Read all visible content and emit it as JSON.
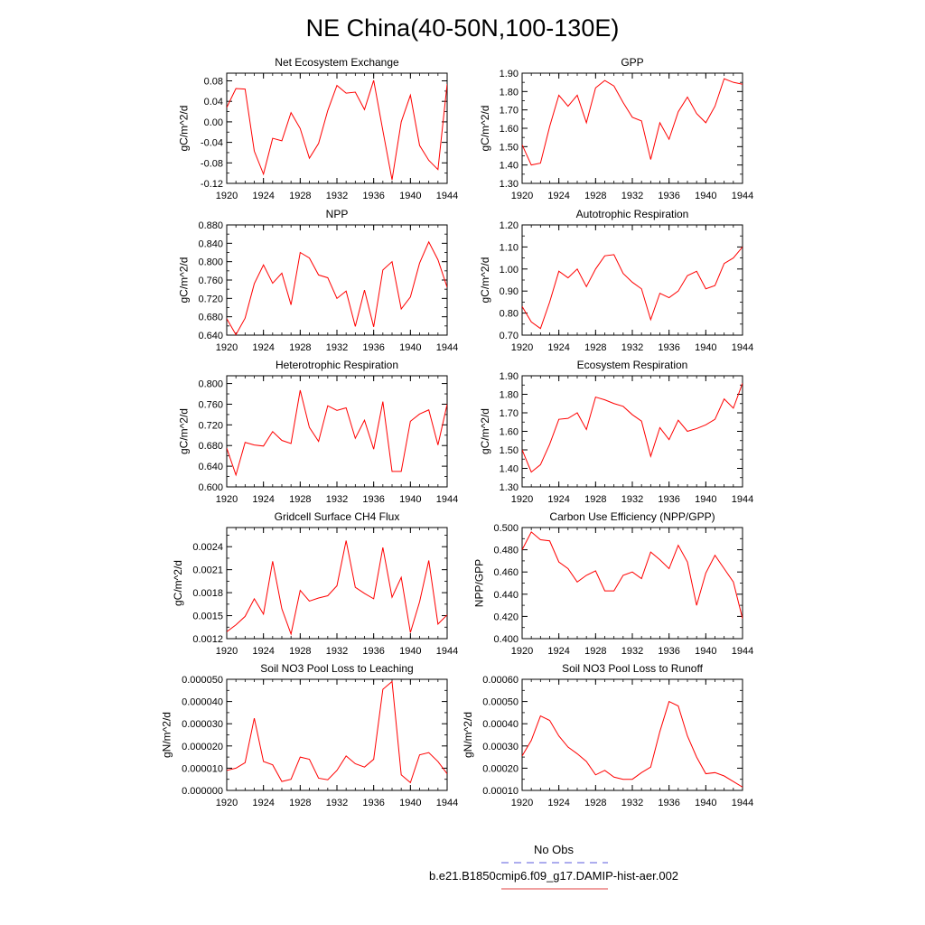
{
  "figure_title": "NE China(40-50N,100-130E)",
  "legend": [
    {
      "label": "No Obs",
      "color": "#5b5bdc",
      "dash": true
    },
    {
      "label": "b.e21.B1850cmip6.f09_g17.DAMIP-hist-aer.002",
      "color": "#e04040",
      "dash": false
    }
  ],
  "colors": {
    "series": "#ff0000",
    "frame": "#000000"
  },
  "chart_data": [
    {
      "type": "line",
      "title": "Net Ecosystem Exchange",
      "ylabel": "gC/m^2/d",
      "x": [
        1920,
        1921,
        1922,
        1923,
        1924,
        1925,
        1926,
        1927,
        1928,
        1929,
        1930,
        1931,
        1932,
        1933,
        1934,
        1935,
        1936,
        1937,
        1938,
        1939,
        1940,
        1941,
        1942,
        1943,
        1944
      ],
      "xticks": [
        "1920",
        "1924",
        "1928",
        "1932",
        "1936",
        "1940",
        "1944"
      ],
      "ylim": [
        -0.12,
        0.095
      ],
      "yticks": [
        "-0.12",
        "-0.08",
        "-0.04",
        "0.00",
        "0.04",
        "0.08"
      ],
      "values": [
        0.028,
        0.065,
        0.064,
        -0.057,
        -0.102,
        -0.032,
        -0.037,
        0.018,
        -0.013,
        -0.071,
        -0.042,
        0.022,
        0.071,
        0.056,
        0.058,
        0.024,
        0.081,
        -0.017,
        -0.113,
        0.0,
        0.052,
        -0.046,
        -0.075,
        -0.093,
        0.074
      ]
    },
    {
      "type": "line",
      "title": "GPP",
      "ylabel": "gC/m^2/d",
      "x": [
        1920,
        1921,
        1922,
        1923,
        1924,
        1925,
        1926,
        1927,
        1928,
        1929,
        1930,
        1931,
        1932,
        1933,
        1934,
        1935,
        1936,
        1937,
        1938,
        1939,
        1940,
        1941,
        1942,
        1943,
        1944
      ],
      "xticks": [
        "1920",
        "1924",
        "1928",
        "1932",
        "1936",
        "1940",
        "1944"
      ],
      "ylim": [
        1.3,
        1.9
      ],
      "yticks": [
        "1.30",
        "1.40",
        "1.50",
        "1.60",
        "1.70",
        "1.80",
        "1.90"
      ],
      "values": [
        1.51,
        1.4,
        1.41,
        1.61,
        1.78,
        1.72,
        1.78,
        1.63,
        1.82,
        1.86,
        1.83,
        1.74,
        1.66,
        1.64,
        1.43,
        1.63,
        1.54,
        1.69,
        1.77,
        1.68,
        1.63,
        1.72,
        1.87,
        1.85,
        1.84
      ]
    },
    {
      "type": "line",
      "title": "NPP",
      "ylabel": "gC/m^2/d",
      "x": [
        1920,
        1921,
        1922,
        1923,
        1924,
        1925,
        1926,
        1927,
        1928,
        1929,
        1930,
        1931,
        1932,
        1933,
        1934,
        1935,
        1936,
        1937,
        1938,
        1939,
        1940,
        1941,
        1942,
        1943,
        1944
      ],
      "xticks": [
        "1920",
        "1924",
        "1928",
        "1932",
        "1936",
        "1940",
        "1944"
      ],
      "ylim": [
        0.64,
        0.88
      ],
      "yticks": [
        "0.640",
        "0.680",
        "0.720",
        "0.760",
        "0.800",
        "0.840",
        "0.880"
      ],
      "values": [
        0.676,
        0.641,
        0.677,
        0.752,
        0.793,
        0.753,
        0.775,
        0.706,
        0.82,
        0.808,
        0.771,
        0.765,
        0.72,
        0.736,
        0.659,
        0.738,
        0.658,
        0.782,
        0.8,
        0.697,
        0.723,
        0.797,
        0.843,
        0.804,
        0.744
      ]
    },
    {
      "type": "line",
      "title": "Autotrophic Respiration",
      "ylabel": "gC/m^2/d",
      "x": [
        1920,
        1921,
        1922,
        1923,
        1924,
        1925,
        1926,
        1927,
        1928,
        1929,
        1930,
        1931,
        1932,
        1933,
        1934,
        1935,
        1936,
        1937,
        1938,
        1939,
        1940,
        1941,
        1942,
        1943,
        1944
      ],
      "xticks": [
        "1920",
        "1924",
        "1928",
        "1932",
        "1936",
        "1940",
        "1944"
      ],
      "ylim": [
        0.7,
        1.2
      ],
      "yticks": [
        "0.70",
        "0.80",
        "0.90",
        "1.00",
        "1.10",
        "1.20"
      ],
      "values": [
        0.83,
        0.76,
        0.73,
        0.85,
        0.99,
        0.96,
        1.0,
        0.92,
        1.0,
        1.06,
        1.065,
        0.98,
        0.94,
        0.91,
        0.77,
        0.89,
        0.87,
        0.9,
        0.97,
        0.99,
        0.91,
        0.925,
        1.025,
        1.05,
        1.1
      ]
    },
    {
      "type": "line",
      "title": "Heterotrophic Respiration",
      "ylabel": "gC/m^2/d",
      "x": [
        1920,
        1921,
        1922,
        1923,
        1924,
        1925,
        1926,
        1927,
        1928,
        1929,
        1930,
        1931,
        1932,
        1933,
        1934,
        1935,
        1936,
        1937,
        1938,
        1939,
        1940,
        1941,
        1942,
        1943,
        1944
      ],
      "xticks": [
        "1920",
        "1924",
        "1928",
        "1932",
        "1936",
        "1940",
        "1944"
      ],
      "ylim": [
        0.6,
        0.815
      ],
      "yticks": [
        "0.600",
        "0.640",
        "0.680",
        "0.720",
        "0.760",
        "0.800"
      ],
      "values": [
        0.675,
        0.623,
        0.686,
        0.681,
        0.679,
        0.707,
        0.69,
        0.684,
        0.787,
        0.715,
        0.688,
        0.757,
        0.748,
        0.753,
        0.694,
        0.729,
        0.673,
        0.765,
        0.63,
        0.63,
        0.727,
        0.741,
        0.749,
        0.681,
        0.76
      ]
    },
    {
      "type": "line",
      "title": "Ecosystem Respiration",
      "ylabel": "gC/m^2/d",
      "x": [
        1920,
        1921,
        1922,
        1923,
        1924,
        1925,
        1926,
        1927,
        1928,
        1929,
        1930,
        1931,
        1932,
        1933,
        1934,
        1935,
        1936,
        1937,
        1938,
        1939,
        1940,
        1941,
        1942,
        1943,
        1944
      ],
      "xticks": [
        "1920",
        "1924",
        "1928",
        "1932",
        "1936",
        "1940",
        "1944"
      ],
      "ylim": [
        1.3,
        1.9
      ],
      "yticks": [
        "1.30",
        "1.40",
        "1.50",
        "1.60",
        "1.70",
        "1.80",
        "1.90"
      ],
      "values": [
        1.5,
        1.38,
        1.42,
        1.53,
        1.665,
        1.67,
        1.7,
        1.61,
        1.785,
        1.77,
        1.75,
        1.735,
        1.69,
        1.655,
        1.465,
        1.62,
        1.555,
        1.66,
        1.6,
        1.615,
        1.635,
        1.665,
        1.775,
        1.725,
        1.86
      ]
    },
    {
      "type": "line",
      "title": "Gridcell Surface CH4 Flux",
      "ylabel": "gC/m^2/d",
      "x": [
        1920,
        1921,
        1922,
        1923,
        1924,
        1925,
        1926,
        1927,
        1928,
        1929,
        1930,
        1931,
        1932,
        1933,
        1934,
        1935,
        1936,
        1937,
        1938,
        1939,
        1940,
        1941,
        1942,
        1943,
        1944
      ],
      "xticks": [
        "1920",
        "1924",
        "1928",
        "1932",
        "1936",
        "1940",
        "1944"
      ],
      "ylim": [
        0.0012,
        0.00265
      ],
      "yticks": [
        "0.0012",
        "0.0015",
        "0.0018",
        "0.0021",
        "0.0024"
      ],
      "values": [
        0.00129,
        0.00138,
        0.00149,
        0.00172,
        0.00152,
        0.00221,
        0.00159,
        0.00126,
        0.00183,
        0.00169,
        0.00173,
        0.00176,
        0.00189,
        0.00248,
        0.00187,
        0.00179,
        0.00172,
        0.00239,
        0.00174,
        0.002,
        0.00128,
        0.00168,
        0.00222,
        0.00139,
        0.00151
      ]
    },
    {
      "type": "line",
      "title": "Carbon Use Efficiency (NPP/GPP)",
      "ylabel": "NPP/GPP",
      "x": [
        1920,
        1921,
        1922,
        1923,
        1924,
        1925,
        1926,
        1927,
        1928,
        1929,
        1930,
        1931,
        1932,
        1933,
        1934,
        1935,
        1936,
        1937,
        1938,
        1939,
        1940,
        1941,
        1942,
        1943,
        1944
      ],
      "xticks": [
        "1920",
        "1924",
        "1928",
        "1932",
        "1936",
        "1940",
        "1944"
      ],
      "ylim": [
        0.4,
        0.5
      ],
      "yticks": [
        "0.400",
        "0.420",
        "0.440",
        "0.460",
        "0.480",
        "0.500"
      ],
      "values": [
        0.48,
        0.496,
        0.489,
        0.488,
        0.469,
        0.463,
        0.451,
        0.457,
        0.461,
        0.443,
        0.443,
        0.457,
        0.46,
        0.454,
        0.478,
        0.471,
        0.463,
        0.484,
        0.469,
        0.43,
        0.459,
        0.475,
        0.463,
        0.451,
        0.418
      ]
    },
    {
      "type": "line",
      "title": "Soil NO3 Pool Loss to Leaching",
      "ylabel": "gN/m^2/d",
      "x": [
        1920,
        1921,
        1922,
        1923,
        1924,
        1925,
        1926,
        1927,
        1928,
        1929,
        1930,
        1931,
        1932,
        1933,
        1934,
        1935,
        1936,
        1937,
        1938,
        1939,
        1940,
        1941,
        1942,
        1943,
        1944
      ],
      "xticks": [
        "1920",
        "1924",
        "1928",
        "1932",
        "1936",
        "1940",
        "1944"
      ],
      "ylim": [
        0.0,
        5e-05
      ],
      "yticks": [
        "0.000000",
        "0.000010",
        "0.000020",
        "0.000030",
        "0.000040",
        "0.000050"
      ],
      "values": [
        9e-06,
        1e-05,
        1.25e-05,
        3.25e-05,
        1.3e-05,
        1.15e-05,
        4e-06,
        5e-06,
        1.5e-05,
        1.4e-05,
        5.5e-06,
        4.8e-06,
        9e-06,
        1.55e-05,
        1.2e-05,
        1.05e-05,
        1.4e-05,
        4.55e-05,
        4.9e-05,
        7e-06,
        3.5e-06,
        1.6e-05,
        1.7e-05,
        1.3e-05,
        7.5e-06
      ]
    },
    {
      "type": "line",
      "title": "Soil NO3 Pool Loss to Runoff",
      "ylabel": "gN/m^2/d",
      "x": [
        1920,
        1921,
        1922,
        1923,
        1924,
        1925,
        1926,
        1927,
        1928,
        1929,
        1930,
        1931,
        1932,
        1933,
        1934,
        1935,
        1936,
        1937,
        1938,
        1939,
        1940,
        1941,
        1942,
        1943,
        1944
      ],
      "xticks": [
        "1920",
        "1924",
        "1928",
        "1932",
        "1936",
        "1940",
        "1944"
      ],
      "ylim": [
        0.0001,
        0.0006
      ],
      "yticks": [
        "0.00010",
        "0.00020",
        "0.00030",
        "0.00040",
        "0.00050",
        "0.00060"
      ],
      "values": [
        0.000255,
        0.000325,
        0.000435,
        0.000415,
        0.000345,
        0.000295,
        0.000265,
        0.00023,
        0.00017,
        0.00019,
        0.00016,
        0.00015,
        0.00015,
        0.00018,
        0.000205,
        0.000365,
        0.0005,
        0.00048,
        0.000345,
        0.00025,
        0.000175,
        0.00018,
        0.000165,
        0.00014,
        0.000115
      ]
    }
  ]
}
